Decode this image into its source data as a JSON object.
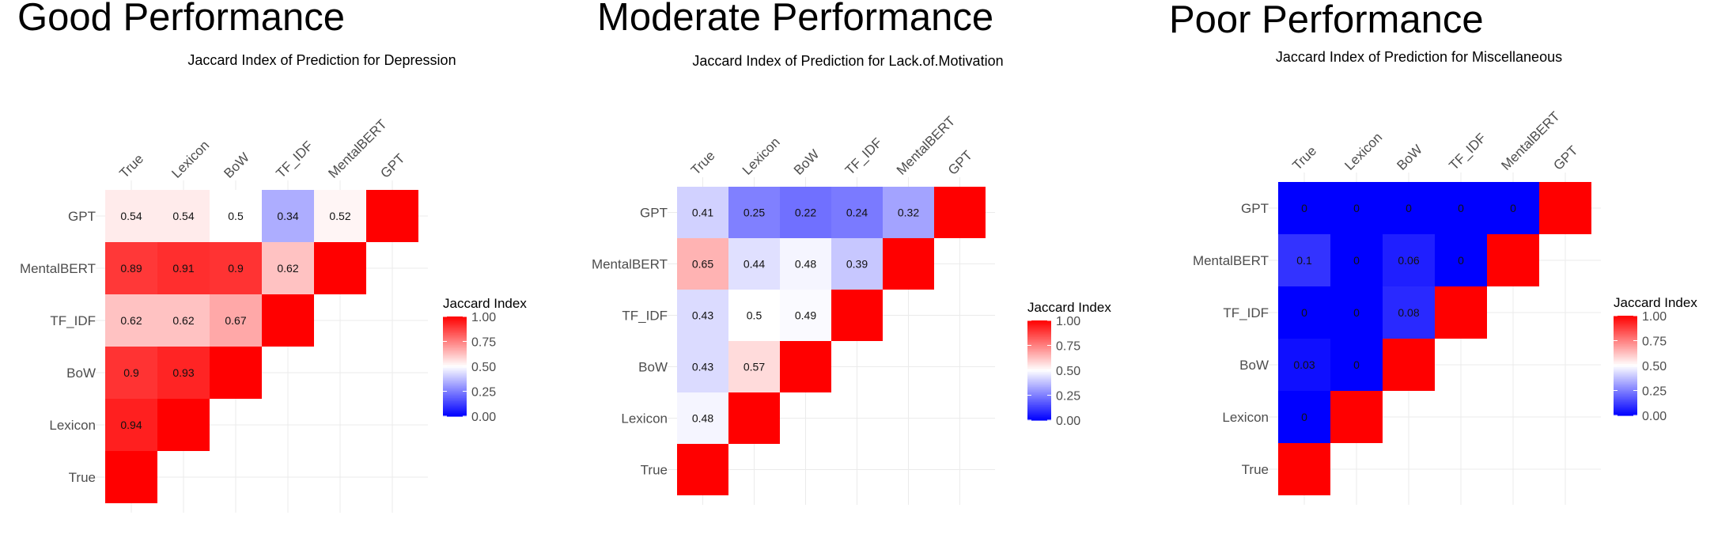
{
  "chart_data": [
    {
      "type": "heatmap",
      "section_title": "Good Performance",
      "title": "Jaccard Index of Prediction for Depression",
      "x_labels": [
        "True",
        "Lexicon",
        "BoW",
        "TF_IDF",
        "MentalBERT",
        "GPT"
      ],
      "y_labels": [
        "GPT",
        "MentalBERT",
        "TF_IDF",
        "BoW",
        "Lexicon",
        "True"
      ],
      "values": [
        [
          0.54,
          0.54,
          0.5,
          0.34,
          0.52,
          1.0
        ],
        [
          0.89,
          0.91,
          0.9,
          0.62,
          1.0,
          null
        ],
        [
          0.62,
          0.62,
          0.67,
          1.0,
          null,
          null
        ],
        [
          0.9,
          0.93,
          1.0,
          null,
          null,
          null
        ],
        [
          0.94,
          1.0,
          null,
          null,
          null,
          null
        ],
        [
          1.0,
          null,
          null,
          null,
          null,
          null
        ]
      ],
      "legend": {
        "title": "Jaccard Index",
        "ticks": [
          "1.00",
          "0.75",
          "0.50",
          "0.25",
          "0.00"
        ],
        "range": [
          0,
          1
        ],
        "position": "right"
      },
      "colorscale": {
        "low": "#0000ff",
        "mid": "#ffffff",
        "high": "#ff0000",
        "midpoint": 0.5
      }
    },
    {
      "type": "heatmap",
      "section_title": "Moderate Performance",
      "title": "Jaccard Index of Prediction for Lack.of.Motivation",
      "x_labels": [
        "True",
        "Lexicon",
        "BoW",
        "TF_IDF",
        "MentalBERT",
        "GPT"
      ],
      "y_labels": [
        "GPT",
        "MentalBERT",
        "TF_IDF",
        "BoW",
        "Lexicon",
        "True"
      ],
      "values": [
        [
          0.41,
          0.25,
          0.22,
          0.24,
          0.32,
          1.0
        ],
        [
          0.65,
          0.44,
          0.48,
          0.39,
          1.0,
          null
        ],
        [
          0.43,
          0.5,
          0.49,
          1.0,
          null,
          null
        ],
        [
          0.43,
          0.57,
          1.0,
          null,
          null,
          null
        ],
        [
          0.48,
          1.0,
          null,
          null,
          null,
          null
        ],
        [
          1.0,
          null,
          null,
          null,
          null,
          null
        ]
      ],
      "legend": {
        "title": "Jaccard Index",
        "ticks": [
          "1.00",
          "0.75",
          "0.50",
          "0.25",
          "0.00"
        ],
        "range": [
          0,
          1
        ],
        "position": "right"
      },
      "colorscale": {
        "low": "#0000ff",
        "mid": "#ffffff",
        "high": "#ff0000",
        "midpoint": 0.5
      }
    },
    {
      "type": "heatmap",
      "section_title": "Poor Performance",
      "title": "Jaccard Index of Prediction for Miscellaneous",
      "x_labels": [
        "True",
        "Lexicon",
        "BoW",
        "TF_IDF",
        "MentalBERT",
        "GPT"
      ],
      "y_labels": [
        "GPT",
        "MentalBERT",
        "TF_IDF",
        "BoW",
        "Lexicon",
        "True"
      ],
      "values": [
        [
          0,
          0,
          0,
          0,
          0,
          1.0
        ],
        [
          0.1,
          0,
          0.06,
          0,
          1.0,
          null
        ],
        [
          0,
          0,
          0.08,
          1.0,
          null,
          null
        ],
        [
          0.03,
          0,
          1.0,
          null,
          null,
          null
        ],
        [
          0,
          1.0,
          null,
          null,
          null,
          null
        ],
        [
          1.0,
          null,
          null,
          null,
          null,
          null
        ]
      ],
      "legend": {
        "title": "Jaccard Index",
        "ticks": [
          "1.00",
          "0.75",
          "0.50",
          "0.25",
          "0.00"
        ],
        "range": [
          0,
          1
        ],
        "position": "right"
      },
      "colorscale": {
        "low": "#0000ff",
        "mid": "#ffffff",
        "high": "#ff0000",
        "midpoint": 0.5
      }
    }
  ]
}
